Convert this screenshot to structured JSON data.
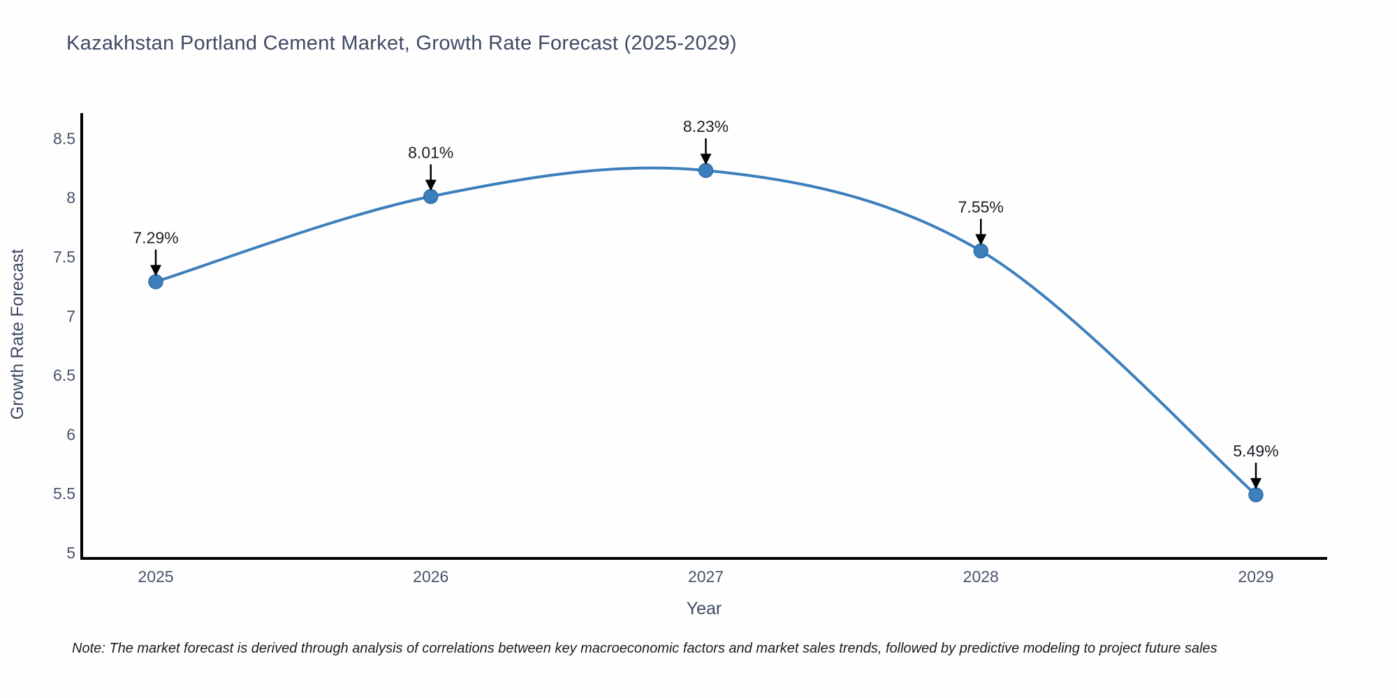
{
  "title": "Kazakhstan Portland Cement Market, Growth Rate Forecast (2025-2029)",
  "note": "Note: The market forecast is derived through analysis of correlations between key macroeconomic factors and market sales trends, followed by predictive modeling to project future sales",
  "chart_data": {
    "type": "line",
    "line_shape": "spline",
    "title": "Kazakhstan Portland Cement Market, Growth Rate Forecast (2025-2029)",
    "xlabel": "Year",
    "ylabel": "Growth Rate Forecast",
    "categories": [
      "2025",
      "2026",
      "2027",
      "2028",
      "2029"
    ],
    "values": [
      7.29,
      8.01,
      8.23,
      7.55,
      5.49
    ],
    "point_labels": [
      "7.29%",
      "8.01%",
      "8.23%",
      "7.55%",
      "5.49%"
    ],
    "xtick_labels": [
      "2025",
      "2026",
      "2027",
      "2028",
      "2029"
    ],
    "yticks": [
      5,
      5.5,
      6,
      6.5,
      7,
      7.5,
      8,
      8.5
    ],
    "ytick_labels": [
      "5",
      "5.5",
      "6",
      "6.5",
      "7",
      "7.5",
      "8",
      "8.5"
    ],
    "ylim": [
      5,
      8.71
    ],
    "grid": false,
    "legend_position": "none",
    "markers": true,
    "annotations_have_arrows": true,
    "colors": {
      "line": "#3d7fbd",
      "marker": "#3d7fbd",
      "marker_edge": "#2e6ca5",
      "axis": "#000000",
      "annotation": "#000000",
      "annotation_text": "#1c1e24",
      "text": "#47536a",
      "title_text": "#3e4a63",
      "background": "#fefefe"
    }
  }
}
